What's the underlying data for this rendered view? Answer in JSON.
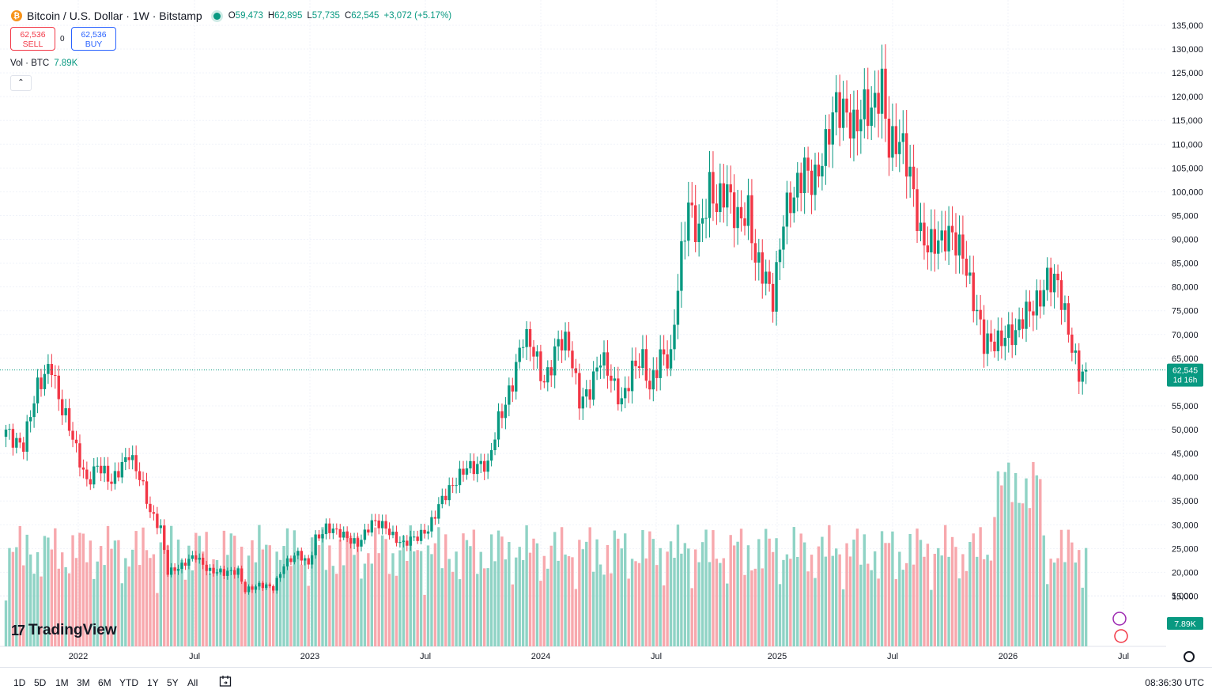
{
  "header": {
    "coin_glyph": "₿",
    "title": "Bitcoin / U.S. Dollar · 1W · Bitstamp",
    "ohlc": {
      "o_label": "O",
      "o": "59,473",
      "h_label": "H",
      "h": "62,895",
      "l_label": "L",
      "l": "57,735",
      "c_label": "C",
      "c": "62,545",
      "change": "+3,072 (+5.17%)"
    }
  },
  "trade": {
    "sell_price": "62,536",
    "sell_label": "SELL",
    "spread": "0",
    "buy_price": "62,536",
    "buy_label": "BUY"
  },
  "volume_legend": {
    "label": "Vol · BTC",
    "value": "7.89K"
  },
  "collapse_glyph": "⌃",
  "price_tag": {
    "value": "62,545",
    "countdown": "1d 16h"
  },
  "volume_tag": "7.89K",
  "brand": {
    "name": "TradingView",
    "mark": "17"
  },
  "bottom": {
    "timeframes": [
      "1D",
      "5D",
      "1M",
      "3M",
      "6M",
      "YTD",
      "1Y",
      "5Y",
      "All"
    ],
    "clock": "08:36:30 UTC"
  },
  "colors": {
    "up": "#089981",
    "down": "#f23645",
    "vol_up": "#8fd3c5",
    "vol_down": "#f7a8ad",
    "grid": "#f0f3fa",
    "tag_bg": "#089981"
  },
  "chart_data": {
    "type": "candlestick",
    "interval": "1W",
    "y_axis": {
      "labels": [
        "135,000",
        "130,000",
        "125,000",
        "120,000",
        "115,000",
        "110,000",
        "105,000",
        "100,000",
        "95,000",
        "90,000",
        "85,000",
        "80,000",
        "75,000",
        "70,000",
        "65,000",
        "55,000",
        "50,000",
        "45,000",
        "40,000",
        "35,000",
        "30,000",
        "25,000",
        "20,000",
        "15,000",
        "5,000"
      ]
    },
    "x_axis": {
      "labels": [
        "2022",
        "Jul",
        "2023",
        "Jul",
        "2024",
        "Jul",
        "2025",
        "Jul",
        "2026",
        "Jul"
      ]
    },
    "last_price": 62545,
    "anchors": [
      [
        0,
        50000
      ],
      [
        5,
        47000
      ],
      [
        9,
        58000
      ],
      [
        13,
        65000
      ],
      [
        15,
        57000
      ],
      [
        20,
        45000
      ],
      [
        23,
        39500
      ],
      [
        26,
        43000
      ],
      [
        30,
        38000
      ],
      [
        35,
        46000
      ],
      [
        38,
        40000
      ],
      [
        41,
        32000
      ],
      [
        44,
        29500
      ],
      [
        46,
        20500
      ],
      [
        50,
        21000
      ],
      [
        54,
        23500
      ],
      [
        58,
        20500
      ],
      [
        62,
        19500
      ],
      [
        66,
        20500
      ],
      [
        68,
        16500
      ],
      [
        72,
        17000
      ],
      [
        76,
        16800
      ],
      [
        79,
        22000
      ],
      [
        83,
        23500
      ],
      [
        86,
        21500
      ],
      [
        88,
        27500
      ],
      [
        91,
        29500
      ],
      [
        94,
        28000
      ],
      [
        100,
        26500
      ],
      [
        104,
        30000
      ],
      [
        108,
        29500
      ],
      [
        113,
        26000
      ],
      [
        117,
        27000
      ],
      [
        120,
        29500
      ],
      [
        123,
        34500
      ],
      [
        127,
        37500
      ],
      [
        131,
        43000
      ],
      [
        135,
        42500
      ],
      [
        137,
        41500
      ],
      [
        140,
        52000
      ],
      [
        144,
        61000
      ],
      [
        147,
        68500
      ],
      [
        150,
        66000
      ],
      [
        153,
        61000
      ],
      [
        157,
        68000
      ],
      [
        160,
        66500
      ],
      [
        163,
        57000
      ],
      [
        166,
        59000
      ],
      [
        169,
        64000
      ],
      [
        172,
        60500
      ],
      [
        175,
        57000
      ],
      [
        178,
        62500
      ],
      [
        181,
        63500
      ],
      [
        183,
        58500
      ],
      [
        186,
        67000
      ],
      [
        189,
        64500
      ],
      [
        191,
        79000
      ],
      [
        194,
        97500
      ],
      [
        197,
        93000
      ],
      [
        200,
        100000
      ],
      [
        202,
        95000
      ],
      [
        205,
        101000
      ],
      [
        208,
        96000
      ],
      [
        211,
        95000
      ],
      [
        213,
        84000
      ],
      [
        216,
        82500
      ],
      [
        218,
        79000
      ],
      [
        221,
        94500
      ],
      [
        224,
        97000
      ],
      [
        227,
        106000
      ],
      [
        230,
        104000
      ],
      [
        233,
        108000
      ],
      [
        236,
        117000
      ],
      [
        239,
        118500
      ],
      [
        241,
        115000
      ],
      [
        244,
        116000
      ],
      [
        246,
        114500
      ],
      [
        249,
        124000
      ],
      [
        251,
        112000
      ],
      [
        254,
        110000
      ],
      [
        257,
        102000
      ],
      [
        260,
        92000
      ],
      [
        263,
        90000
      ],
      [
        266,
        88000
      ],
      [
        269,
        90500
      ],
      [
        272,
        89000
      ],
      [
        275,
        77000
      ],
      [
        278,
        67000
      ],
      [
        281,
        69000
      ],
      [
        284,
        71000
      ],
      [
        287,
        69000
      ],
      [
        290,
        74000
      ],
      [
        293,
        78000
      ],
      [
        296,
        82000
      ],
      [
        299,
        79000
      ],
      [
        302,
        71000
      ],
      [
        305,
        63000
      ],
      [
        307,
        62500
      ]
    ],
    "volume_axis": {
      "labels": [
        "25,000",
        "20,000",
        "15,000",
        "10,000",
        "5,000"
      ]
    }
  }
}
